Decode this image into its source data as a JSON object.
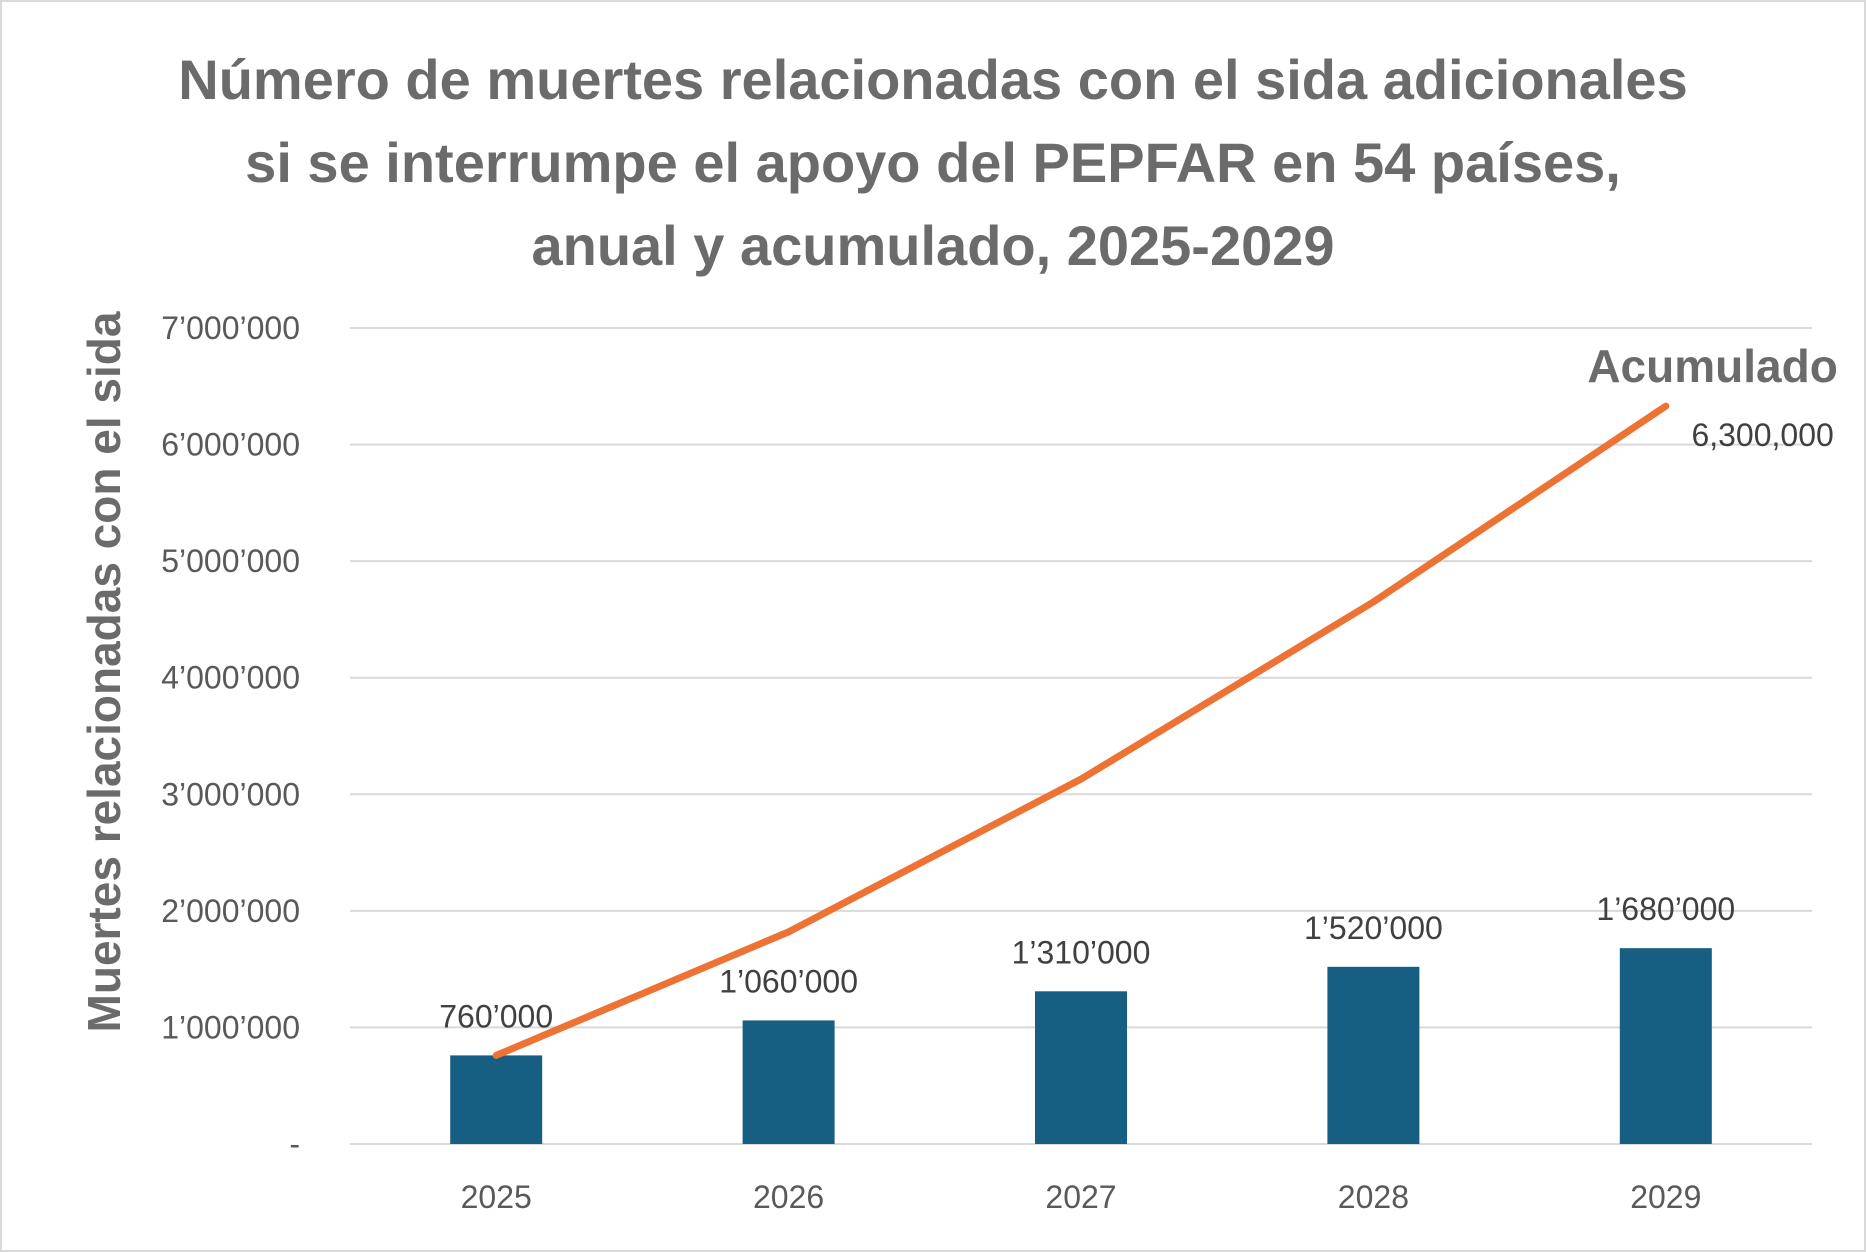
{
  "chart_data": {
    "type": "bar",
    "title": "Número de muertes relacionadas con el sida adicionales si se interrumpe el apoyo del PEPFAR en 54 países, anual y acumulado, 2025-2029",
    "title_lines": [
      "Número de muertes relacionadas con el sida adicionales",
      "si se interrumpe el apoyo del PEPFAR en 54 países,",
      "anual y acumulado, 2025-2029"
    ],
    "xlabel": "",
    "ylabel": "Muertes relacionadas con el sida",
    "categories": [
      "2025",
      "2026",
      "2027",
      "2028",
      "2029"
    ],
    "ylim": [
      0,
      7000000
    ],
    "yticks": [
      0,
      1000000,
      2000000,
      3000000,
      4000000,
      5000000,
      6000000,
      7000000
    ],
    "ytick_labels": [
      "-",
      "1’000’000",
      "2’000’000",
      "3’000’000",
      "4’000’000",
      "5’000’000",
      "6’000’000",
      "7’000’000"
    ],
    "grid": true,
    "series": [
      {
        "type": "bar",
        "color": "#175e83",
        "values": [
          760000,
          1060000,
          1310000,
          1520000,
          1680000
        ],
        "labels": [
          "760’000",
          "1’060’000",
          "1’310’000",
          "1’520’000",
          "1’680’000"
        ]
      },
      {
        "type": "line",
        "name": "Acumulado",
        "color": "#ed7233",
        "values": [
          760000,
          1820000,
          3130000,
          4650000,
          6330000
        ],
        "end_label": "6,300,000"
      }
    ]
  }
}
